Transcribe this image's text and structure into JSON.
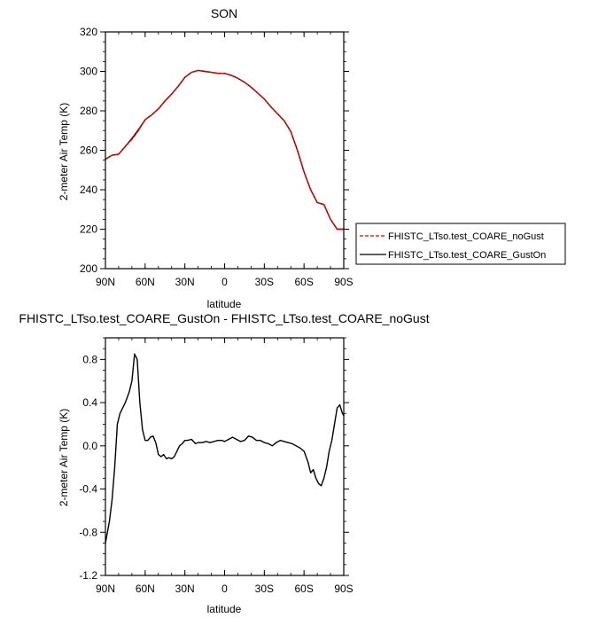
{
  "chart_data": [
    {
      "type": "line",
      "title": "SON",
      "xlabel": "latitude",
      "ylabel": "2-meter Air Temp (K)",
      "xlim": [
        -90,
        90
      ],
      "ylim": [
        200,
        320
      ],
      "x_tick_values": [
        -90,
        -60,
        -30,
        0,
        30,
        60,
        90
      ],
      "x_tick_labels": [
        "90N",
        "60N",
        "30N",
        "0",
        "30S",
        "60S",
        "90S"
      ],
      "y_tick_values": [
        200,
        220,
        240,
        260,
        280,
        300,
        320
      ],
      "y_tick_labels": [
        "200",
        "220",
        "240",
        "260",
        "280",
        "300",
        "320"
      ],
      "legend_position": "right",
      "x": [
        -90,
        -85,
        -80,
        -75,
        -70,
        -65,
        -60,
        -55,
        -50,
        -45,
        -40,
        -35,
        -30,
        -25,
        -20,
        -15,
        -10,
        -5,
        0,
        5,
        10,
        15,
        20,
        25,
        30,
        35,
        40,
        45,
        50,
        55,
        60,
        65,
        70,
        75,
        80,
        85,
        90
      ],
      "series": [
        {
          "name": "FHISTC_LTso.test_COARE_noGust",
          "color": "#e00000",
          "dash": "dashed",
          "values": [
            255.5,
            257.5,
            258,
            262,
            265.5,
            270,
            275.5,
            278,
            281,
            285,
            288.5,
            292.5,
            297,
            299.5,
            300.5,
            300,
            299.5,
            299,
            299,
            298,
            296.5,
            294.5,
            292,
            289,
            286,
            282,
            278.5,
            275,
            269.5,
            260,
            249,
            240,
            233.5,
            232.5,
            225,
            220,
            220
          ]
        },
        {
          "name": "FHISTC_LTso.test_COARE_GustOn",
          "color": "#000000",
          "dash": "solid",
          "values": [
            255.5,
            257.5,
            258,
            262,
            266,
            270.5,
            275.5,
            278,
            281,
            285,
            288.5,
            292.5,
            297,
            299.5,
            300.5,
            300,
            299.5,
            299,
            299,
            298,
            296.5,
            294.5,
            292,
            289,
            286,
            282,
            278.5,
            275,
            269.5,
            260,
            249,
            240,
            233.5,
            232.5,
            225,
            220,
            220
          ]
        }
      ]
    },
    {
      "type": "line",
      "title": "FHISTC_LTso.test_COARE_GustOn - FHISTC_LTso.test_COARE_noGust",
      "xlabel": "latitude",
      "ylabel": "2-meter Air Temp (K)",
      "xlim": [
        -90,
        90
      ],
      "ylim": [
        -1.2,
        1.0
      ],
      "x_tick_values": [
        -90,
        -60,
        -30,
        0,
        30,
        60,
        90
      ],
      "x_tick_labels": [
        "90N",
        "60N",
        "30N",
        "0",
        "30S",
        "60S",
        "90S"
      ],
      "y_tick_values": [
        -1.2,
        -0.8,
        -0.4,
        0.0,
        0.4,
        0.8
      ],
      "y_tick_labels": [
        "-1.2",
        "-0.8",
        "-0.4",
        "0.0",
        "0.4",
        "0.8"
      ],
      "x": [
        -90,
        -87,
        -85,
        -83,
        -81,
        -79,
        -77,
        -75,
        -72,
        -70,
        -68,
        -66,
        -64,
        -62,
        -60,
        -58,
        -56,
        -54,
        -52,
        -50,
        -48,
        -46,
        -44,
        -42,
        -40,
        -38,
        -36,
        -34,
        -32,
        -30,
        -28,
        -25,
        -22,
        -20,
        -17,
        -14,
        -11,
        -8,
        -5,
        -2,
        0,
        3,
        6,
        9,
        12,
        15,
        18,
        21,
        24,
        27,
        30,
        33,
        36,
        39,
        42,
        45,
        48,
        51,
        54,
        57,
        60,
        63,
        65,
        67,
        69,
        71,
        73,
        75,
        77,
        79,
        81,
        83,
        85,
        87,
        89,
        90
      ],
      "series": [
        {
          "name": "",
          "color": "#000000",
          "dash": "solid",
          "values": [
            -0.9,
            -0.7,
            -0.5,
            -0.2,
            0.2,
            0.3,
            0.35,
            0.4,
            0.5,
            0.6,
            0.85,
            0.8,
            0.4,
            0.15,
            0.05,
            0.05,
            0.08,
            0.09,
            0.03,
            -0.08,
            -0.1,
            -0.08,
            -0.12,
            -0.11,
            -0.12,
            -0.1,
            -0.05,
            0.0,
            0.02,
            0.05,
            0.05,
            0.06,
            0.02,
            0.03,
            0.03,
            0.04,
            0.03,
            0.04,
            0.05,
            0.05,
            0.04,
            0.06,
            0.08,
            0.06,
            0.04,
            0.05,
            0.09,
            0.08,
            0.05,
            0.05,
            0.03,
            0.02,
            0.0,
            0.03,
            0.05,
            0.04,
            0.03,
            0.02,
            0.0,
            -0.02,
            -0.05,
            -0.15,
            -0.25,
            -0.22,
            -0.3,
            -0.35,
            -0.37,
            -0.3,
            -0.2,
            -0.05,
            0.05,
            0.2,
            0.35,
            0.38,
            0.3,
            0.28
          ]
        }
      ]
    }
  ]
}
